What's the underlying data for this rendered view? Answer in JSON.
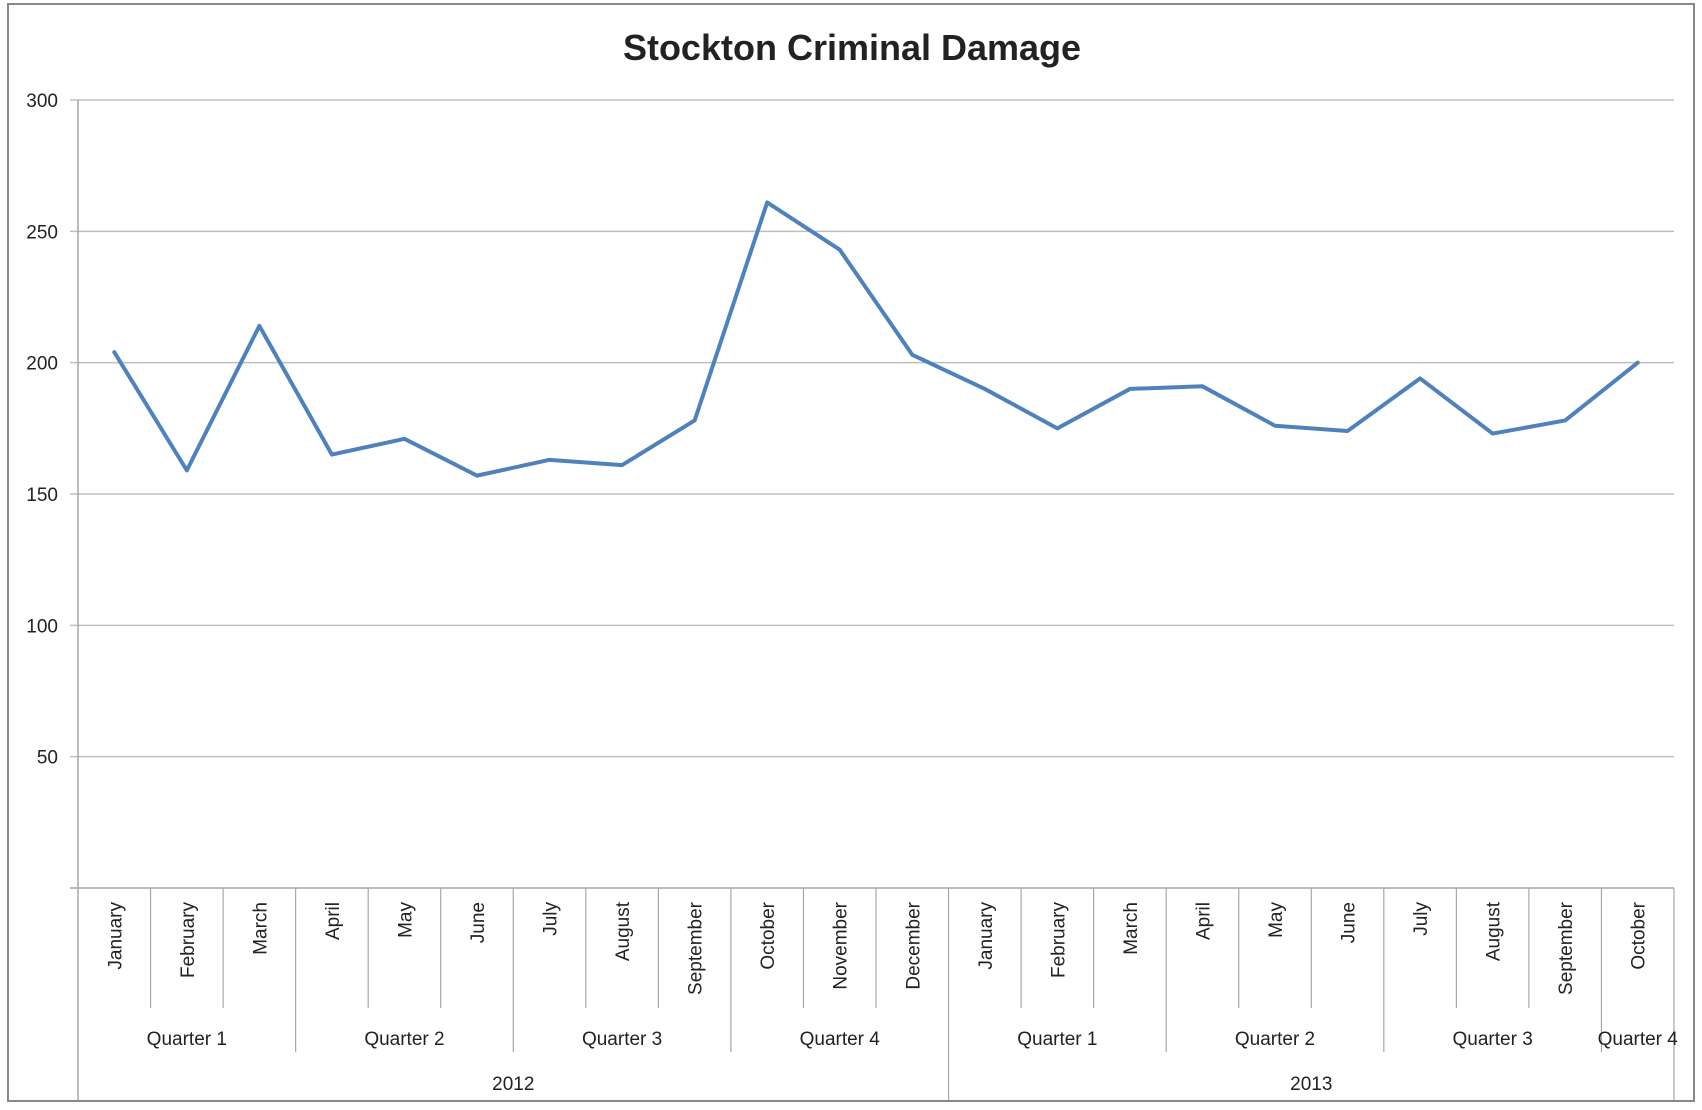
{
  "chart_data": {
    "type": "line",
    "title": "Stockton Criminal Damage",
    "xlabel": "",
    "ylabel": "",
    "ylim": [
      0,
      300
    ],
    "yticks": [
      50,
      100,
      150,
      200,
      250,
      300
    ],
    "grid": true,
    "legend": "none",
    "categories": [
      {
        "month": "January",
        "quarter": "Quarter 1",
        "year": "2012"
      },
      {
        "month": "February",
        "quarter": "Quarter 1",
        "year": "2012"
      },
      {
        "month": "March",
        "quarter": "Quarter 1",
        "year": "2012"
      },
      {
        "month": "April",
        "quarter": "Quarter 2",
        "year": "2012"
      },
      {
        "month": "May",
        "quarter": "Quarter 2",
        "year": "2012"
      },
      {
        "month": "June",
        "quarter": "Quarter 2",
        "year": "2012"
      },
      {
        "month": "July",
        "quarter": "Quarter 3",
        "year": "2012"
      },
      {
        "month": "August",
        "quarter": "Quarter 3",
        "year": "2012"
      },
      {
        "month": "September",
        "quarter": "Quarter 3",
        "year": "2012"
      },
      {
        "month": "October",
        "quarter": "Quarter 4",
        "year": "2012"
      },
      {
        "month": "November",
        "quarter": "Quarter 4",
        "year": "2012"
      },
      {
        "month": "December",
        "quarter": "Quarter 4",
        "year": "2012"
      },
      {
        "month": "January",
        "quarter": "Quarter 1",
        "year": "2013"
      },
      {
        "month": "February",
        "quarter": "Quarter 1",
        "year": "2013"
      },
      {
        "month": "March",
        "quarter": "Quarter 1",
        "year": "2013"
      },
      {
        "month": "April",
        "quarter": "Quarter 2",
        "year": "2013"
      },
      {
        "month": "May",
        "quarter": "Quarter 2",
        "year": "2013"
      },
      {
        "month": "June",
        "quarter": "Quarter 2",
        "year": "2013"
      },
      {
        "month": "July",
        "quarter": "Quarter 3",
        "year": "2013"
      },
      {
        "month": "August",
        "quarter": "Quarter 3",
        "year": "2013"
      },
      {
        "month": "September",
        "quarter": "Quarter 3",
        "year": "2013"
      },
      {
        "month": "October",
        "quarter": "Quarter 4",
        "year": "2013"
      }
    ],
    "series": [
      {
        "values": [
          204,
          159,
          214,
          165,
          171,
          157,
          163,
          161,
          178,
          261,
          243,
          203,
          190,
          175,
          190,
          191,
          176,
          174,
          194,
          173,
          178,
          200
        ],
        "color": "#4F81BD"
      }
    ],
    "colors": {
      "gridline": "#BFBFBF",
      "axis": "#A6A6A6",
      "frame": "#888888"
    }
  }
}
